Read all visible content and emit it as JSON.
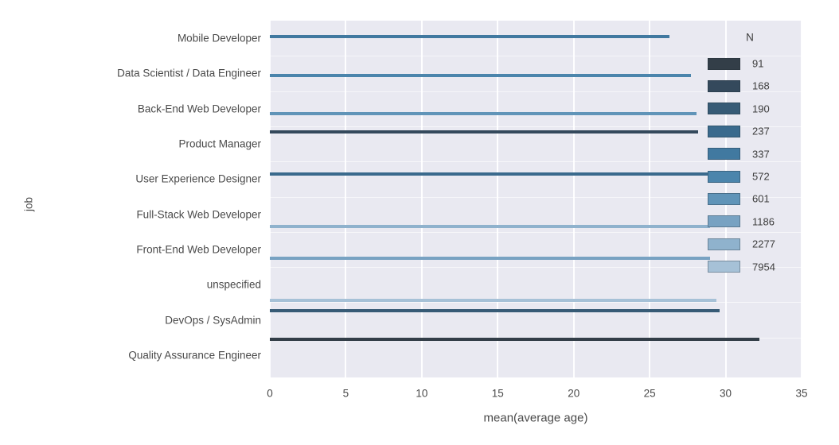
{
  "chart_data": {
    "type": "bar",
    "orientation": "horizontal",
    "xlabel": "mean(average age)",
    "ylabel": "job",
    "legend_title": "N",
    "xlim": [
      0,
      35
    ],
    "xticks": [
      0,
      5,
      10,
      15,
      20,
      25,
      30,
      35
    ],
    "grid": true,
    "plot_background": "#e9e9f1",
    "legend_position": "inside-top-right",
    "categories": [
      "Mobile Developer",
      "Data Scientist / Data Engineer",
      "Back-End Web Developer",
      "Product Manager",
      "User Experience Designer",
      "Full-Stack Web Developer",
      "Front-End Web Developer",
      "unspecified",
      "DevOps / SysAdmin",
      "Quality Assurance Engineer"
    ],
    "series": [
      {
        "job": "Mobile Developer",
        "mean_average_age": 26.3,
        "N": 337
      },
      {
        "job": "Data Scientist / Data Engineer",
        "mean_average_age": 27.7,
        "N": 572
      },
      {
        "job": "Back-End Web Developer",
        "mean_average_age": 28.1,
        "N": 601
      },
      {
        "job": "Product Manager",
        "mean_average_age": 28.2,
        "N": 168
      },
      {
        "job": "User Experience Designer",
        "mean_average_age": 28.9,
        "N": 237
      },
      {
        "job": "Full-Stack Web Developer",
        "mean_average_age": 29.0,
        "N": 2277
      },
      {
        "job": "Front-End Web Developer",
        "mean_average_age": 29.0,
        "N": 1186
      },
      {
        "job": "unspecified",
        "mean_average_age": 29.4,
        "N": 7954
      },
      {
        "job": "DevOps / SysAdmin",
        "mean_average_age": 29.6,
        "N": 190
      },
      {
        "job": "Quality Assurance Engineer",
        "mean_average_age": 32.2,
        "N": 91
      }
    ],
    "legend": [
      {
        "label": "91",
        "color": "#333e48"
      },
      {
        "label": "168",
        "color": "#34495c"
      },
      {
        "label": "190",
        "color": "#375b76"
      },
      {
        "label": "237",
        "color": "#3a6a8d"
      },
      {
        "label": "337",
        "color": "#4179a0"
      },
      {
        "label": "572",
        "color": "#4b85ac"
      },
      {
        "label": "601",
        "color": "#6094b8"
      },
      {
        "label": "1186",
        "color": "#78a2c2"
      },
      {
        "label": "2277",
        "color": "#8fb2cd"
      },
      {
        "label": "7954",
        "color": "#a6c1d7"
      }
    ]
  }
}
